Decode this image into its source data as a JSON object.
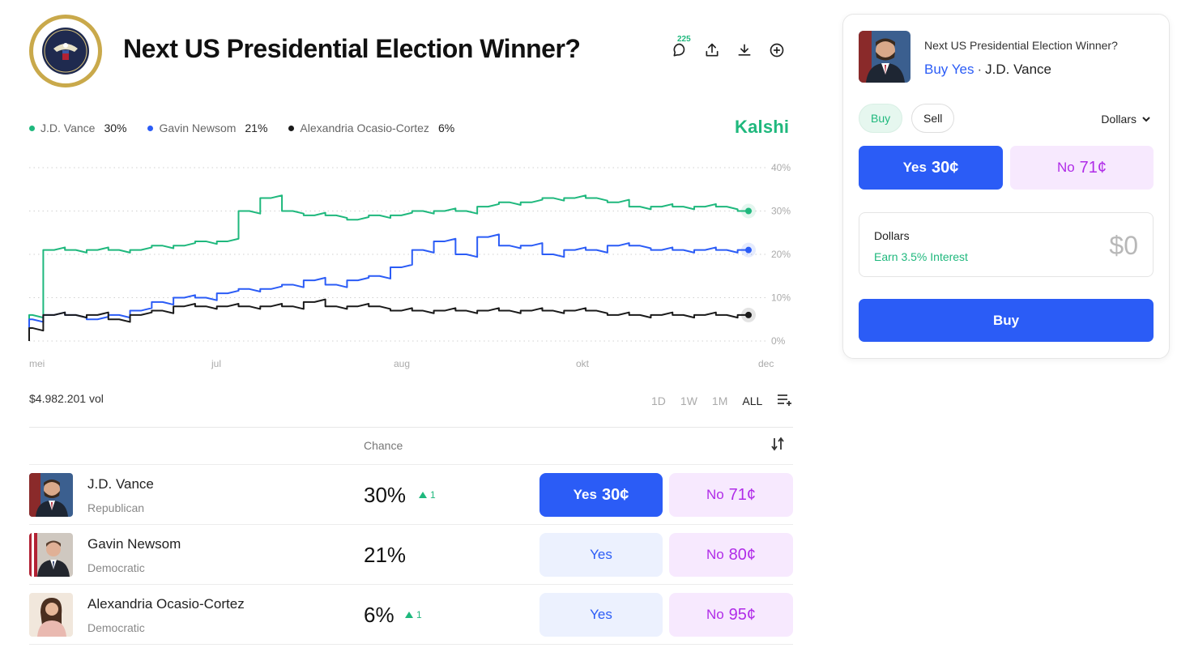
{
  "market": {
    "title": "Next US Presidential Election Winner?",
    "comment_count": "225",
    "brand": "Kalshi",
    "volume": "$4.982.201 vol"
  },
  "icons": {
    "seal": "presidential-seal",
    "comment": "comment-icon",
    "share": "share-icon",
    "download": "download-icon",
    "add": "plus-circle-icon"
  },
  "colors": {
    "green": "#1fb87d",
    "blue": "#2b5cf6",
    "black": "#1a1a1a",
    "no_text": "#b02ce8"
  },
  "legend": [
    {
      "name": "J.D. Vance",
      "pct": "30%"
    },
    {
      "name": "Gavin Newsom",
      "pct": "21%"
    },
    {
      "name": "Alexandria Ocasio-Cortez",
      "pct": "6%"
    }
  ],
  "chart_data": {
    "type": "line",
    "x_labels": [
      "mei",
      "jul",
      "aug",
      "okt",
      "dec"
    ],
    "y_ticks": [
      "40%",
      "30%",
      "20%",
      "10%",
      "0%"
    ],
    "ylim": [
      0,
      40
    ],
    "grid": true,
    "legend_placement": "top-left",
    "series": [
      {
        "name": "J.D. Vance",
        "color": "#1fb87d",
        "values": [
          6,
          21,
          21,
          21,
          21,
          21,
          22,
          22,
          23,
          23,
          30,
          33,
          30,
          29,
          29,
          28,
          29,
          29,
          30,
          30,
          30,
          31,
          32,
          32,
          33,
          33,
          33,
          32,
          31,
          31,
          31,
          31,
          31,
          30
        ]
      },
      {
        "name": "Gavin Newsom",
        "color": "#2b5cf6",
        "values": [
          5,
          6,
          6,
          5,
          6,
          7,
          9,
          10,
          10,
          11,
          12,
          12,
          13,
          14,
          13,
          14,
          15,
          17,
          21,
          23,
          20,
          24,
          22,
          22,
          20,
          21,
          21,
          22,
          22,
          21,
          21,
          21,
          21,
          21
        ]
      },
      {
        "name": "Alexandria Ocasio-Cortez",
        "color": "#1a1a1a",
        "values": [
          3,
          6,
          6,
          6,
          5,
          6,
          7,
          8,
          8,
          8,
          8,
          8,
          8,
          9,
          8,
          8,
          8,
          7,
          7,
          7,
          7,
          7,
          7,
          7,
          7,
          7,
          7,
          6,
          6,
          6,
          6,
          6,
          6,
          6
        ]
      }
    ]
  },
  "time_ranges": [
    "1D",
    "1W",
    "1M",
    "ALL"
  ],
  "table": {
    "chance_header": "Chance",
    "rows": [
      {
        "name": "J.D. Vance",
        "party": "Republican",
        "chance": "30%",
        "delta": "1",
        "yes_label": "Yes",
        "yes_price": "30¢",
        "no_label": "No",
        "no_price": "71¢"
      },
      {
        "name": "Gavin Newsom",
        "party": "Democratic",
        "chance": "21%",
        "delta": "",
        "yes_label": "Yes",
        "yes_price": "",
        "no_label": "No",
        "no_price": "80¢"
      },
      {
        "name": "Alexandria Ocasio-Cortez",
        "party": "Democratic",
        "chance": "6%",
        "delta": "1",
        "yes_label": "Yes",
        "yes_price": "",
        "no_label": "No",
        "no_price": "95¢"
      }
    ]
  },
  "panel": {
    "title": "Next US Presidential Election Winner?",
    "action": "Buy Yes",
    "separator": "·",
    "candidate": "J.D. Vance",
    "tab_buy": "Buy",
    "tab_sell": "Sell",
    "currency": "Dollars",
    "yes_label": "Yes",
    "yes_price": "30¢",
    "no_label": "No",
    "no_price": "71¢",
    "amount_label": "Dollars",
    "amount_sub": "Earn 3.5% Interest",
    "amount_value": "$0",
    "buy_button": "Buy"
  }
}
